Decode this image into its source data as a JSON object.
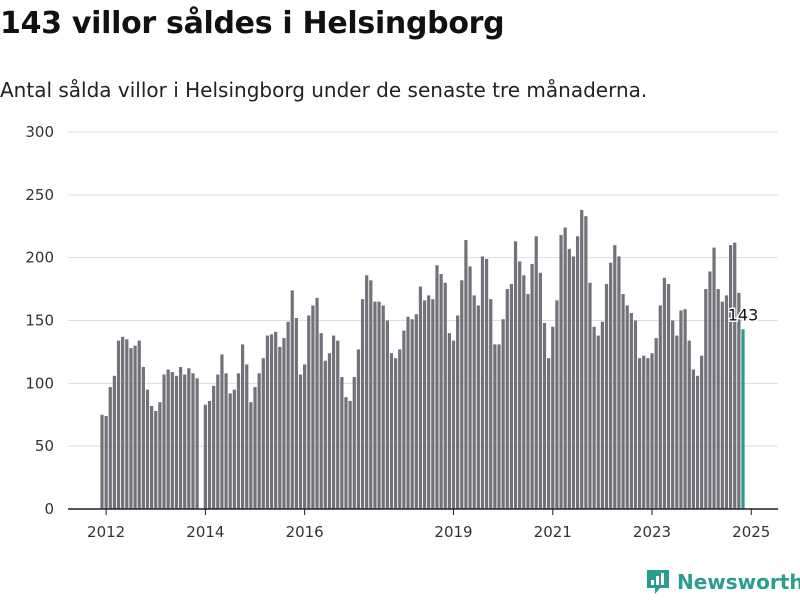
{
  "title": "143 villor såldes i Helsingborg",
  "subtitle": "Antal sålda villor i Helsingborg under de senaste tre månaderna.",
  "brand": "Newsworthy",
  "colors": {
    "bar": "#73727a",
    "highlight": "#2a9d8f",
    "grid": "#dddddd",
    "axis": "#222222"
  },
  "chart_data": {
    "type": "bar",
    "ylim": [
      0,
      300
    ],
    "y_ticks": [
      "0",
      "50",
      "100",
      "150",
      "200",
      "250",
      "300"
    ],
    "x_ticks": [
      {
        "label": "2012",
        "x": "2012-01"
      },
      {
        "label": "2014",
        "x": "2014-01"
      },
      {
        "label": "2016",
        "x": "2016-01"
      },
      {
        "label": "2019",
        "x": "2019-01"
      },
      {
        "label": "2021",
        "x": "2021-01"
      },
      {
        "label": "2023",
        "x": "2023-01"
      },
      {
        "label": "2025",
        "x": "2025-01"
      }
    ],
    "start": "2011-12",
    "end": "2025-01",
    "values": [
      75,
      74,
      97,
      106,
      134,
      137,
      135,
      128,
      130,
      134,
      113,
      95,
      82,
      78,
      85,
      107,
      111,
      109,
      106,
      113,
      107,
      112,
      108,
      104,
      null,
      83,
      86,
      98,
      107,
      123,
      108,
      92,
      95,
      108,
      131,
      115,
      85,
      97,
      108,
      120,
      138,
      139,
      141,
      129,
      136,
      149,
      174,
      152,
      107,
      115,
      154,
      162,
      168,
      140,
      118,
      124,
      138,
      134,
      105,
      89,
      86,
      105,
      127,
      167,
      186,
      182,
      165,
      165,
      162,
      150,
      124,
      120,
      127,
      142,
      153,
      151,
      155,
      177,
      166,
      170,
      167,
      194,
      187,
      180,
      140,
      134,
      154,
      182,
      214,
      193,
      170,
      162,
      201,
      199,
      167,
      131,
      131,
      151,
      175,
      179,
      213,
      197,
      186,
      171,
      195,
      217,
      188,
      148,
      120,
      145,
      166,
      218,
      224,
      207,
      201,
      217,
      238,
      233,
      180,
      145,
      138,
      149,
      179,
      196,
      210,
      201,
      171,
      162,
      156,
      150,
      120,
      122,
      120,
      124,
      136,
      162,
      184,
      179,
      150,
      138,
      158,
      159,
      134,
      111,
      106,
      122,
      175,
      189,
      208,
      175,
      165,
      170,
      210,
      212,
      172,
      143
    ]
  }
}
